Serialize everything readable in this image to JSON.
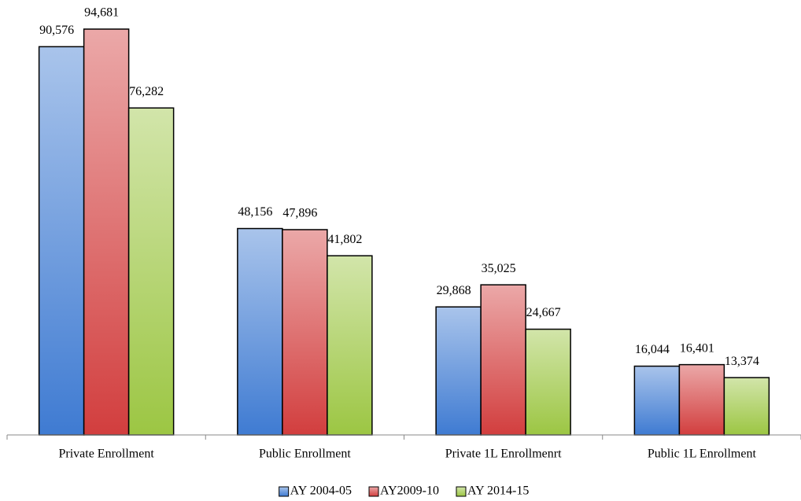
{
  "chart_data": {
    "type": "bar",
    "categories": [
      "Private Enrollment",
      "Public Enrollment",
      "Private 1L Enrollmenrt",
      "Public 1L Enrollment"
    ],
    "series": [
      {
        "name": "AY 2004-05",
        "color": "#3f7bd2",
        "values": [
          90576,
          48156,
          29868,
          16044
        ],
        "value_labels": [
          "90,576",
          "48,156",
          "29,868",
          "16,044"
        ]
      },
      {
        "name": "AY2009-10",
        "color": "#d23e3e",
        "values": [
          94681,
          47896,
          35025,
          16401
        ],
        "value_labels": [
          "94,681",
          "47,896",
          "35,025",
          "16,401"
        ]
      },
      {
        "name": "AY 2014-15",
        "color": "#9cc643",
        "values": [
          76282,
          41802,
          24667,
          13374
        ],
        "value_labels": [
          "76,282",
          "41,802",
          "24,667",
          "13,374"
        ]
      }
    ],
    "legend": "bottom"
  }
}
